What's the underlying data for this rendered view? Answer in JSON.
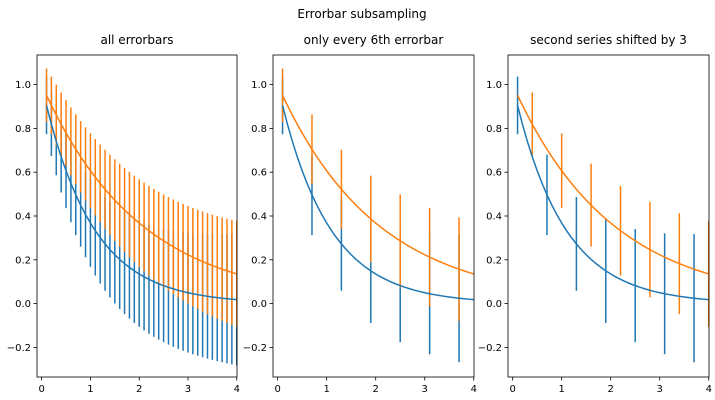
{
  "figure": {
    "suptitle": "Errorbar subsampling"
  },
  "chart_data": [
    {
      "type": "line",
      "title": "all errorbars",
      "xlabel": "",
      "ylabel": "",
      "xlim": [
        -0.095,
        4.005
      ],
      "ylim": [
        -0.335,
        1.135
      ],
      "xticks": [
        0,
        1,
        2,
        3,
        4
      ],
      "yticks": [
        -0.2,
        0.0,
        0.2,
        0.4,
        0.6,
        0.8,
        1.0
      ],
      "ytick_labels": [
        "−0.2",
        "0.0",
        "0.2",
        "0.4",
        "0.6",
        "0.8",
        "1.0"
      ],
      "grid": false,
      "x": {
        "start": 0.1,
        "stop": 4.0,
        "step": 0.1
      },
      "series": [
        {
          "color": "#1f77b4",
          "y_formula": "exp(-x)",
          "yerr_formula": "0.1 + 0.1*sqrt(x)",
          "errorevery": 1
        },
        {
          "color": "#ff7f0e",
          "y_formula": "exp(-x/2)",
          "yerr_formula": "0.1 + 0.05*sqrt(x)... scaled",
          "errorevery": 1
        }
      ]
    },
    {
      "type": "line",
      "title": "only every 6th errorbar",
      "xlabel": "",
      "ylabel": "",
      "xlim": [
        -0.095,
        4.005
      ],
      "ylim": [
        -0.335,
        1.135
      ],
      "xticks": [
        0,
        1,
        2,
        3,
        4
      ],
      "yticks": [
        -0.2,
        0.0,
        0.2,
        0.4,
        0.6,
        0.8,
        1.0
      ],
      "ytick_labels": [
        "−0.2",
        "0.0",
        "0.2",
        "0.4",
        "0.6",
        "0.8",
        "1.0"
      ],
      "grid": false,
      "x": {
        "start": 0.1,
        "stop": 4.0,
        "step": 0.1
      },
      "series": [
        {
          "color": "#1f77b4",
          "errorevery": [
            0,
            6
          ]
        },
        {
          "color": "#ff7f0e",
          "errorevery": [
            0,
            6
          ]
        }
      ]
    },
    {
      "type": "line",
      "title": "second series shifted by 3",
      "xlabel": "",
      "ylabel": "",
      "xlim": [
        -0.095,
        4.005
      ],
      "ylim": [
        -0.335,
        1.135
      ],
      "xticks": [
        0,
        1,
        2,
        3,
        4
      ],
      "yticks": [
        -0.2,
        0.0,
        0.2,
        0.4,
        0.6,
        0.8,
        1.0
      ],
      "ytick_labels": [
        "−0.2",
        "0.0",
        "0.2",
        "0.4",
        "0.6",
        "0.8",
        "1.0"
      ],
      "grid": false,
      "x": {
        "start": 0.1,
        "stop": 4.0,
        "step": 0.1
      },
      "series": [
        {
          "color": "#1f77b4",
          "errorevery": [
            0,
            6
          ]
        },
        {
          "color": "#ff7f0e",
          "errorevery": [
            3,
            6
          ]
        }
      ]
    }
  ]
}
